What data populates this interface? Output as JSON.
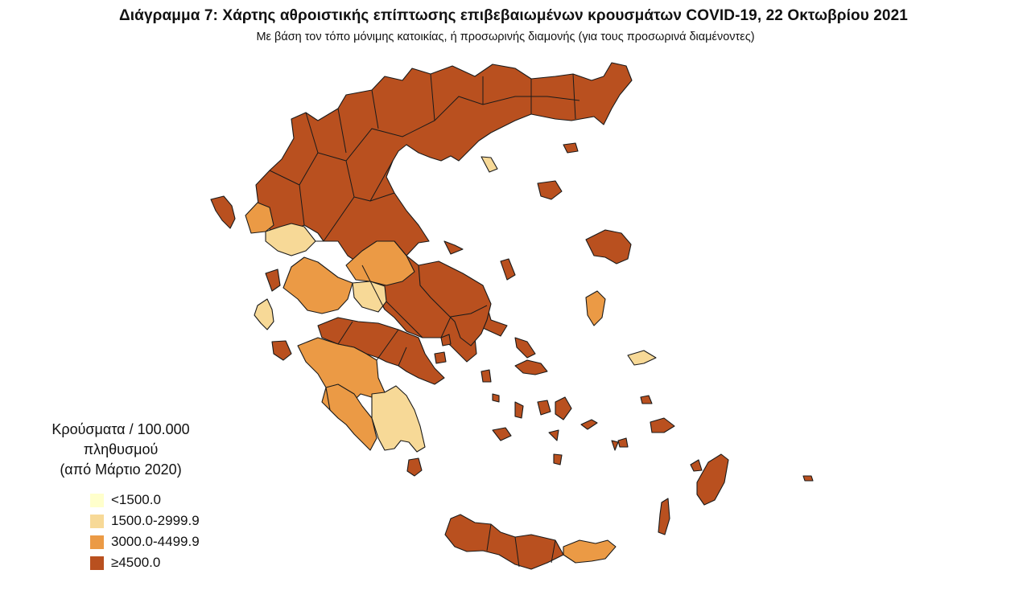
{
  "header": {
    "title": "Διάγραμμα 7: Χάρτης αθροιστικής επίπτωσης επιβεβαιωμένων κρουσμάτων COVID-19, 22 Οκτωβρίου 2021",
    "subtitle": "Με βάση τον τόπο μόνιμης κατοικίας, ή προσωρινής διαμονής (για τους προσωρινά διαμένοντες)"
  },
  "legend": {
    "title_line1": "Κρούσματα / 100.000 πληθυσμού",
    "title_line2": "(από Μάρτιο 2020)",
    "items": [
      {
        "label": "<1500.0",
        "color": "#ffffcc"
      },
      {
        "label": "1500.0-2999.9",
        "color": "#f7d997"
      },
      {
        "label": "3000.0-4499.9",
        "color": "#eb9a45"
      },
      {
        "label": "≥4500.0",
        "color": "#b9501f"
      }
    ]
  }
}
